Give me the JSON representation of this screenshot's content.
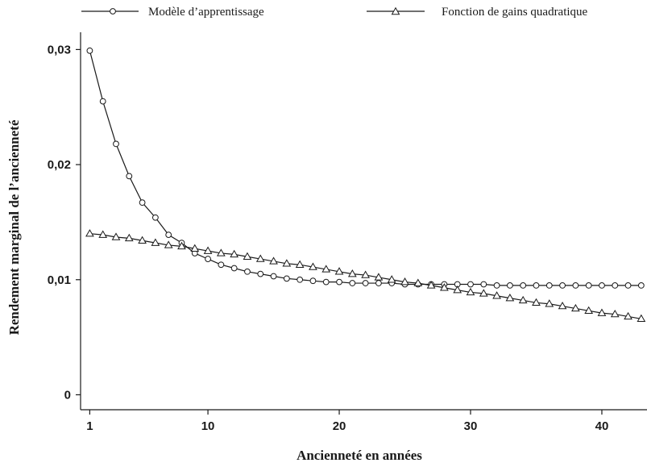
{
  "chart_data": {
    "type": "line",
    "title": "",
    "xlabel": "Ancienneté en années",
    "ylabel": "Rendement marginal de l’ancienneté",
    "xlim": [
      0.3,
      43.5
    ],
    "ylim": [
      -0.0013,
      0.0315
    ],
    "x_ticks": [
      1,
      10,
      20,
      30,
      40
    ],
    "x_tick_labels": [
      "1",
      "10",
      "20",
      "30",
      "40"
    ],
    "y_ticks": [
      0,
      0.01,
      0.02,
      0.03
    ],
    "y_tick_labels": [
      "0",
      "0,01",
      "0,02",
      "0,03"
    ],
    "grid": false,
    "legend_position": "top",
    "x": [
      1,
      2,
      3,
      4,
      5,
      6,
      7,
      8,
      9,
      10,
      11,
      12,
      13,
      14,
      15,
      16,
      17,
      18,
      19,
      20,
      21,
      22,
      23,
      24,
      25,
      26,
      27,
      28,
      29,
      30,
      31,
      32,
      33,
      34,
      35,
      36,
      37,
      38,
      39,
      40,
      41,
      42,
      43
    ],
    "series": [
      {
        "name": "Modèle d’apprentissage",
        "marker": "circle",
        "values": [
          0.0299,
          0.0255,
          0.0218,
          0.019,
          0.0167,
          0.0154,
          0.0139,
          0.0132,
          0.0123,
          0.0118,
          0.0113,
          0.011,
          0.0107,
          0.0105,
          0.0103,
          0.0101,
          0.01,
          0.0099,
          0.0098,
          0.0098,
          0.0097,
          0.0097,
          0.0097,
          0.0097,
          0.0096,
          0.0096,
          0.0096,
          0.0096,
          0.0096,
          0.0096,
          0.0096,
          0.0095,
          0.0095,
          0.0095,
          0.0095,
          0.0095,
          0.0095,
          0.0095,
          0.0095,
          0.0095,
          0.0095,
          0.0095,
          0.0095
        ]
      },
      {
        "name": "Fonction de gains quadratique",
        "marker": "triangle",
        "values": [
          0.014,
          0.0139,
          0.0137,
          0.0136,
          0.0134,
          0.0132,
          0.013,
          0.0129,
          0.0127,
          0.0125,
          0.0123,
          0.0122,
          0.012,
          0.0118,
          0.0116,
          0.0114,
          0.0113,
          0.0111,
          0.0109,
          0.0107,
          0.0105,
          0.0104,
          0.0102,
          0.01,
          0.0098,
          0.0097,
          0.0095,
          0.0093,
          0.0091,
          0.0089,
          0.0088,
          0.0086,
          0.0084,
          0.0082,
          0.008,
          0.0079,
          0.0077,
          0.0075,
          0.0073,
          0.0071,
          0.007,
          0.0068,
          0.0066
        ]
      }
    ]
  }
}
